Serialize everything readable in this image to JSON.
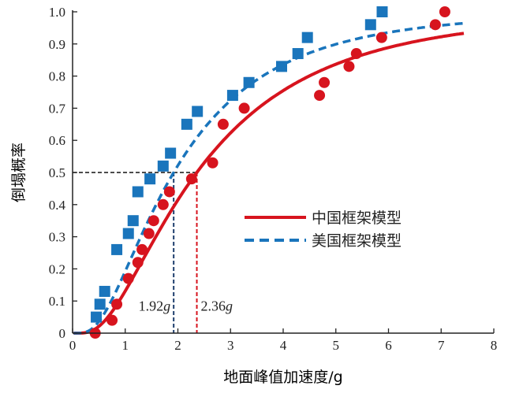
{
  "chart_data": {
    "type": "scatter",
    "title": "",
    "xlabel": "地面峰值加速度/g",
    "ylabel": "倒塌概率",
    "xlim": [
      0,
      8
    ],
    "ylim": [
      0,
      1.0
    ],
    "xticks": [
      "0",
      "1",
      "2",
      "3",
      "4",
      "5",
      "6",
      "7",
      "8"
    ],
    "yticks": [
      "0",
      "0.1",
      "0.2",
      "0.3",
      "0.4",
      "0.5",
      "0.6",
      "0.7",
      "0.8",
      "0.9",
      "1.0"
    ],
    "grid": false,
    "legend_position": "center-right",
    "series": [
      {
        "name": "中国框架模型",
        "color": "#d7141e",
        "line_style": "solid",
        "fit": {
          "type": "lognormal-cdf",
          "median": 2.36,
          "beta": 0.765
        },
        "points": [
          [
            0.43,
            0.0
          ],
          [
            0.75,
            0.04
          ],
          [
            0.84,
            0.09
          ],
          [
            1.06,
            0.17
          ],
          [
            1.24,
            0.22
          ],
          [
            1.32,
            0.26
          ],
          [
            1.45,
            0.31
          ],
          [
            1.54,
            0.35
          ],
          [
            1.72,
            0.4
          ],
          [
            1.84,
            0.44
          ],
          [
            2.26,
            0.48
          ],
          [
            2.66,
            0.53
          ],
          [
            2.86,
            0.65
          ],
          [
            3.26,
            0.7
          ],
          [
            4.69,
            0.74
          ],
          [
            4.78,
            0.78
          ],
          [
            5.25,
            0.83
          ],
          [
            5.39,
            0.87
          ],
          [
            5.87,
            0.92
          ],
          [
            6.89,
            0.96
          ],
          [
            7.07,
            1.0
          ]
        ]
      },
      {
        "name": "美国框架模型",
        "color": "#1a75bc",
        "line_style": "dashed",
        "fit": {
          "type": "lognormal-cdf",
          "median": 1.92,
          "beta": 0.75
        },
        "points": [
          [
            0.45,
            0.05
          ],
          [
            0.52,
            0.09
          ],
          [
            0.61,
            0.13
          ],
          [
            0.84,
            0.26
          ],
          [
            1.06,
            0.31
          ],
          [
            1.15,
            0.35
          ],
          [
            1.24,
            0.44
          ],
          [
            1.47,
            0.48
          ],
          [
            1.72,
            0.52
          ],
          [
            1.86,
            0.56
          ],
          [
            2.17,
            0.65
          ],
          [
            2.37,
            0.69
          ],
          [
            3.04,
            0.74
          ],
          [
            3.35,
            0.78
          ],
          [
            3.97,
            0.83
          ],
          [
            4.28,
            0.87
          ],
          [
            4.46,
            0.92
          ],
          [
            5.66,
            0.96
          ],
          [
            5.88,
            1.0
          ]
        ]
      }
    ],
    "reference": {
      "probability": 0.5
    },
    "annotations": [
      {
        "text": "1.92g",
        "x": 1.92,
        "color": "#1f3f6e"
      },
      {
        "text": "2.36g",
        "x": 2.36,
        "color": "#d7141e"
      }
    ]
  }
}
